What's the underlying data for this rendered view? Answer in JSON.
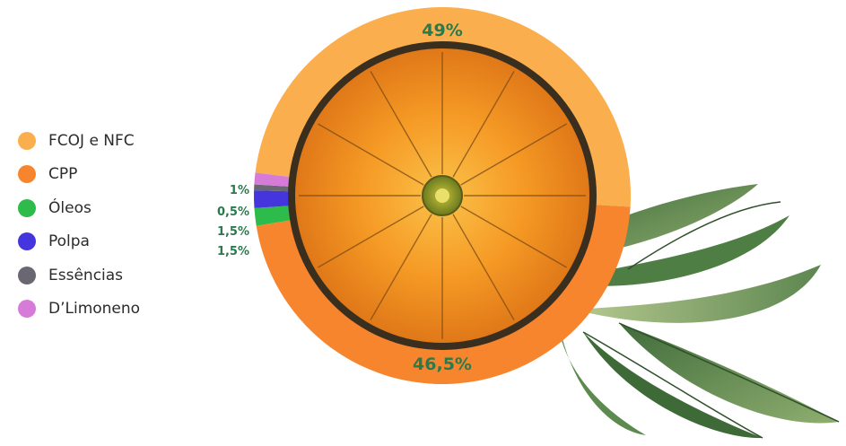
{
  "chart_data": {
    "type": "pie",
    "style": "donut",
    "categories": [
      "FCOJ e NFC",
      "CPP",
      "Óleos",
      "Polpa",
      "Essências",
      "D'Limoneno"
    ],
    "values": [
      49,
      46.5,
      1.5,
      1.5,
      0.5,
      1
    ],
    "value_labels": [
      "49%",
      "46,5%",
      "1,5%",
      "1,5%",
      "0,5%",
      "1%"
    ],
    "colors": [
      "#fbae4d",
      "#f7852e",
      "#2dbb4c",
      "#4535dd",
      "#6a6773",
      "#d67cd8"
    ],
    "legend_position": "left",
    "title": ""
  },
  "legend": {
    "items": [
      {
        "label": "FCOJ e NFC",
        "color": "#fbae4d"
      },
      {
        "label": "CPP",
        "color": "#f7852e"
      },
      {
        "label": "Óleos",
        "color": "#2dbb4c"
      },
      {
        "label": "Polpa",
        "color": "#4535dd"
      },
      {
        "label": "Essências",
        "color": "#6a6773"
      },
      {
        "label": "D’Limoneno",
        "color": "#d67cd8"
      }
    ]
  },
  "center_image": "orange-slice-illustration",
  "decor_image": "citrus-leaves-illustration",
  "label_color": "#2a7a4c"
}
